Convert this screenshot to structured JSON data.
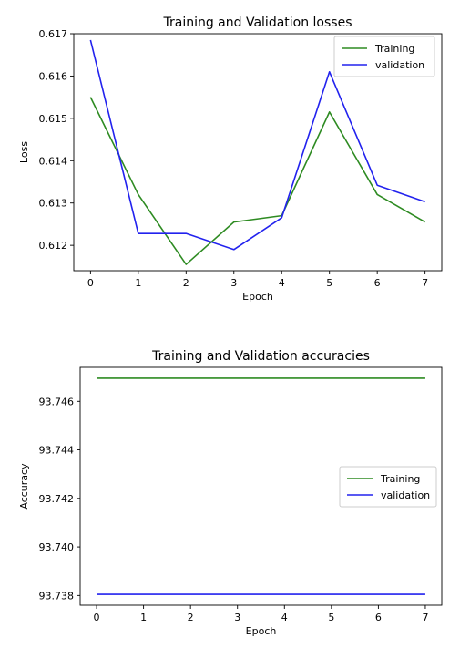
{
  "chart_data": [
    {
      "type": "line",
      "title": "Training and Validation losses",
      "xlabel": "Epoch",
      "ylabel": "Loss",
      "x": [
        0,
        1,
        2,
        3,
        4,
        5,
        6,
        7
      ],
      "xticks": [
        "0",
        "1",
        "2",
        "3",
        "4",
        "5",
        "6",
        "7"
      ],
      "yticks": [
        0.612,
        0.613,
        0.614,
        0.615,
        0.616,
        0.617
      ],
      "ytick_labels": [
        "0.612",
        "0.613",
        "0.614",
        "0.615",
        "0.616",
        "0.617"
      ],
      "xlim": [
        -0.35,
        7.35
      ],
      "ylim": [
        0.6114,
        0.617
      ],
      "grid": false,
      "legend_position": "top-right",
      "series": [
        {
          "name": "Training",
          "color": "#2e8b22",
          "values": [
            0.6155,
            0.6132,
            0.61155,
            0.61255,
            0.6127,
            0.61515,
            0.6132,
            0.61255
          ]
        },
        {
          "name": "validation",
          "color": "#2222ee",
          "values": [
            0.61685,
            0.61228,
            0.61228,
            0.6119,
            0.61265,
            0.6161,
            0.61342,
            0.61303
          ]
        }
      ]
    },
    {
      "type": "line",
      "title": "Training and Validation accuracies",
      "xlabel": "Epoch",
      "ylabel": "Accuracy",
      "x": [
        0,
        1,
        2,
        3,
        4,
        5,
        6,
        7
      ],
      "xticks": [
        "0",
        "1",
        "2",
        "3",
        "4",
        "5",
        "6",
        "7"
      ],
      "yticks": [
        93.738,
        93.74,
        93.742,
        93.744,
        93.746
      ],
      "ytick_labels": [
        "93.738",
        "93.740",
        "93.742",
        "93.744",
        "93.746"
      ],
      "xlim": [
        -0.35,
        7.35
      ],
      "ylim": [
        93.7376,
        93.7474
      ],
      "grid": false,
      "legend_position": "center-right",
      "series": [
        {
          "name": "Training",
          "color": "#2e8b22",
          "values": [
            93.74695,
            93.74695,
            93.74695,
            93.74695,
            93.74695,
            93.74695,
            93.74695,
            93.74695
          ]
        },
        {
          "name": "validation",
          "color": "#2222ee",
          "values": [
            93.73805,
            93.73805,
            93.73805,
            93.73805,
            93.73805,
            93.73805,
            93.73805,
            93.73805
          ]
        }
      ]
    }
  ]
}
